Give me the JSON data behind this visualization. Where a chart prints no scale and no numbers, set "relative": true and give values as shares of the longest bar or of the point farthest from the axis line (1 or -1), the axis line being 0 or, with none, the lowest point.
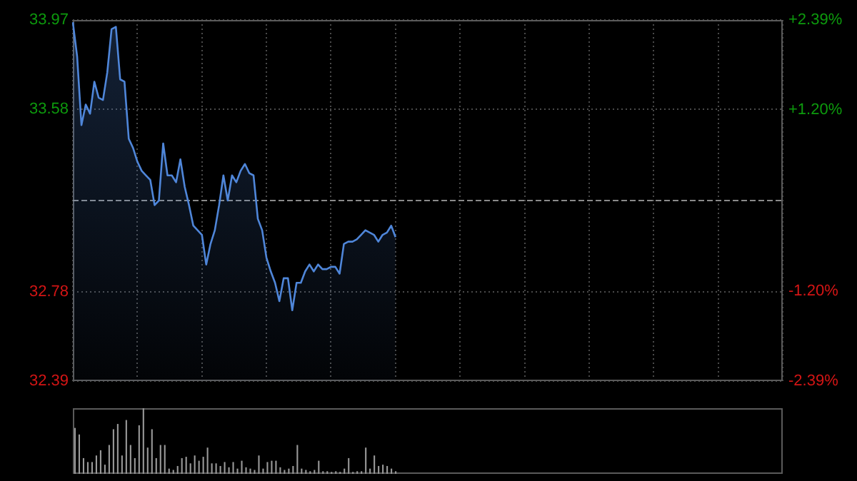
{
  "chart_data": [
    {
      "type": "area",
      "categories": [
        null,
        null,
        null,
        null,
        null,
        null,
        null,
        null,
        null,
        null,
        null,
        null,
        null,
        null,
        null,
        null,
        null,
        null,
        null,
        null,
        null,
        null,
        null,
        null,
        null,
        null,
        null,
        null,
        null,
        null,
        null,
        null,
        null,
        null,
        null,
        null,
        null,
        null,
        null,
        null,
        null,
        null,
        null,
        null,
        null,
        null,
        null,
        null,
        null,
        null,
        null,
        null,
        null,
        null,
        null,
        null,
        null,
        null,
        null,
        null,
        null,
        null,
        null,
        null,
        null,
        null,
        null,
        null,
        null,
        null,
        null,
        null,
        null,
        null,
        null,
        null,
        null,
        null,
        null,
        null,
        null,
        null,
        null,
        null,
        null,
        null,
        null,
        null,
        null,
        null,
        null,
        null,
        null,
        null,
        null,
        null,
        null,
        null,
        null,
        null,
        null,
        null,
        null,
        null,
        null,
        null,
        null,
        null,
        null,
        null,
        null,
        null,
        null,
        null,
        null,
        null,
        null,
        null,
        null,
        null,
        null,
        null,
        null,
        null,
        null,
        null,
        null,
        null,
        null,
        null,
        null,
        null,
        null,
        null,
        null,
        null,
        null,
        null,
        null,
        null,
        null,
        null,
        null,
        null,
        null,
        null,
        null,
        null,
        null,
        null,
        null,
        null,
        null,
        null,
        null,
        null,
        null,
        null,
        null,
        null,
        null,
        null,
        null,
        null,
        null,
        null
      ],
      "series": [
        {
          "color": "#4f86d9",
          "values": [
            33.96,
            33.81,
            33.51,
            33.6,
            33.56,
            33.7,
            33.63,
            33.62,
            33.74,
            33.93,
            33.94,
            33.71,
            33.7,
            33.45,
            33.41,
            33.35,
            33.31,
            33.29,
            33.27,
            33.16,
            33.18,
            33.43,
            33.29,
            33.29,
            33.26,
            33.36,
            33.24,
            33.16,
            33.07,
            33.05,
            33.03,
            32.9,
            32.99,
            33.05,
            33.16,
            33.29,
            33.18,
            33.29,
            33.26,
            33.31,
            33.34,
            33.3,
            33.29,
            33.1,
            33.05,
            32.93,
            32.87,
            32.82,
            32.74,
            32.84,
            32.84,
            32.7,
            32.82,
            32.82,
            32.87,
            32.9,
            32.87,
            32.9,
            32.88,
            32.88,
            32.89,
            32.89,
            32.86,
            32.99,
            33.0,
            33.0,
            33.01,
            33.03,
            33.05,
            33.04,
            33.03,
            33.0,
            33.03,
            33.04,
            33.07,
            33.02,
            null,
            null,
            null,
            null,
            null,
            null,
            null,
            null,
            null,
            null,
            null,
            null,
            null,
            null,
            null,
            null,
            null,
            null,
            null,
            null,
            null,
            null,
            null,
            null,
            null,
            null,
            null,
            null,
            null,
            null,
            null,
            null,
            null,
            null,
            null,
            null,
            null,
            null,
            null,
            null,
            null,
            null,
            null,
            null,
            null,
            null,
            null,
            null,
            null,
            null,
            null,
            null,
            null,
            null,
            null,
            null,
            null,
            null,
            null,
            null,
            null,
            null,
            null,
            null,
            null,
            null,
            null,
            null,
            null,
            null,
            null,
            null,
            null,
            null,
            null,
            null,
            null,
            null,
            null,
            null,
            null,
            null,
            null,
            null,
            null,
            null,
            null,
            null,
            null,
            null
          ]
        }
      ],
      "ylim": [
        32.39,
        33.97
      ],
      "yticks": [
        32.39,
        32.78,
        33.58,
        33.97
      ],
      "y2lim": [
        -2.39,
        2.39
      ],
      "y2ticks": [
        {
          "value": -2.39,
          "label": "-2.39%"
        },
        {
          "value": -1.2,
          "label": "-1.20%"
        },
        {
          "value": 1.2,
          "label": "+1.20%"
        },
        {
          "value": 2.39,
          "label": "+2.39%"
        }
      ],
      "ref_lines": [
        {
          "axis": "y",
          "value": 33.18,
          "line_style": "dashed"
        }
      ],
      "grid": true,
      "legend": false,
      "tick_labels": "y"
    },
    {
      "type": "bar",
      "relative": true,
      "categories": [
        null,
        null,
        null,
        null,
        null,
        null,
        null,
        null,
        null,
        null,
        null,
        null,
        null,
        null,
        null,
        null,
        null,
        null,
        null,
        null,
        null,
        null,
        null,
        null,
        null,
        null,
        null,
        null,
        null,
        null,
        null,
        null,
        null,
        null,
        null,
        null,
        null,
        null,
        null,
        null,
        null,
        null,
        null,
        null,
        null,
        null,
        null,
        null,
        null,
        null,
        null,
        null,
        null,
        null,
        null,
        null,
        null,
        null,
        null,
        null,
        null,
        null,
        null,
        null,
        null,
        null,
        null,
        null,
        null,
        null,
        null,
        null,
        null,
        null,
        null,
        null,
        null,
        null,
        null,
        null,
        null,
        null,
        null,
        null,
        null,
        null,
        null,
        null,
        null,
        null,
        null,
        null,
        null,
        null,
        null,
        null,
        null,
        null,
        null,
        null,
        null,
        null,
        null,
        null,
        null,
        null,
        null,
        null,
        null,
        null,
        null,
        null,
        null,
        null,
        null,
        null,
        null,
        null,
        null,
        null,
        null,
        null,
        null,
        null,
        null,
        null,
        null,
        null,
        null,
        null,
        null,
        null,
        null,
        null,
        null,
        null,
        null,
        null,
        null,
        null,
        null,
        null,
        null,
        null,
        null,
        null,
        null,
        null,
        null,
        null,
        null,
        null,
        null,
        null,
        null,
        null,
        null,
        null,
        null,
        null,
        null,
        null,
        null,
        null,
        null,
        null
      ],
      "series": [
        {
          "color": "#9a9a9a",
          "values": [
            0.7,
            0.6,
            0.24,
            0.18,
            0.18,
            0.28,
            0.36,
            0.14,
            0.44,
            0.68,
            0.76,
            0.28,
            0.82,
            0.44,
            0.24,
            0.74,
            1.0,
            0.4,
            0.68,
            0.24,
            0.44,
            0.44,
            0.08,
            0.06,
            0.12,
            0.24,
            0.26,
            0.16,
            0.28,
            0.2,
            0.26,
            0.4,
            0.16,
            0.16,
            0.12,
            0.18,
            0.1,
            0.18,
            0.08,
            0.2,
            0.1,
            0.08,
            0.06,
            0.28,
            0.08,
            0.18,
            0.2,
            0.2,
            0.1,
            0.06,
            0.08,
            0.12,
            0.44,
            0.08,
            0.06,
            0.04,
            0.06,
            0.2,
            0.04,
            0.04,
            0.03,
            0.04,
            0.03,
            0.08,
            0.24,
            0.03,
            0.04,
            0.04,
            0.4,
            0.08,
            0.28,
            0.12,
            0.14,
            0.12,
            0.08,
            0.04,
            null,
            null,
            null,
            null,
            null,
            null,
            null,
            null,
            null,
            null,
            null,
            null,
            null,
            null,
            null,
            null,
            null,
            null,
            null,
            null,
            null,
            null,
            null,
            null,
            null,
            null,
            null,
            null,
            null,
            null,
            null,
            null,
            null,
            null,
            null,
            null,
            null,
            null,
            null,
            null,
            null,
            null,
            null,
            null,
            null,
            null,
            null,
            null,
            null,
            null,
            null,
            null,
            null,
            null,
            null,
            null,
            null,
            null,
            null,
            null,
            null,
            null,
            null,
            null,
            null,
            null,
            null,
            null,
            null,
            null,
            null,
            null,
            null,
            null,
            null,
            null,
            null,
            null,
            null,
            null,
            null,
            null,
            null,
            null,
            null,
            null,
            null,
            null,
            null,
            null
          ]
        }
      ],
      "legend": false,
      "tick_labels": false
    }
  ]
}
